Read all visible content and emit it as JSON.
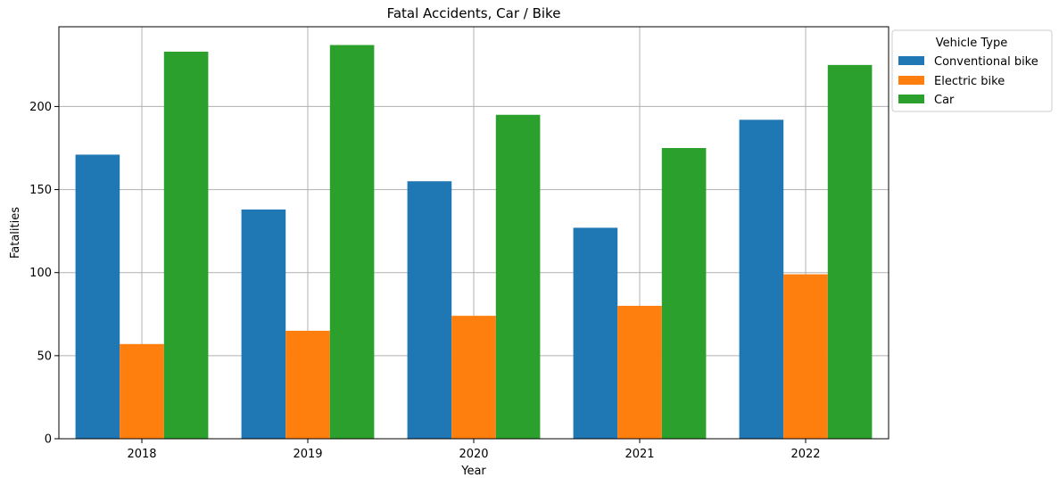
{
  "chart_data": {
    "type": "bar",
    "title": "Fatal Accidents, Car / Bike",
    "xlabel": "Year",
    "ylabel": "Fatalities",
    "categories": [
      "2018",
      "2019",
      "2020",
      "2021",
      "2022"
    ],
    "series": [
      {
        "name": "Conventional bike",
        "color": "#1f77b4",
        "values": [
          171,
          138,
          155,
          127,
          192
        ]
      },
      {
        "name": "Electric bike",
        "color": "#ff7f0e",
        "values": [
          57,
          65,
          74,
          80,
          99
        ]
      },
      {
        "name": "Car",
        "color": "#2ca02c",
        "values": [
          233,
          237,
          195,
          175,
          225
        ]
      }
    ],
    "ylim": [
      0,
      248
    ],
    "yticks": [
      0,
      50,
      100,
      150,
      200
    ],
    "grid": true,
    "legend": {
      "title": "Vehicle Type",
      "placement": "outside-top-right"
    }
  }
}
